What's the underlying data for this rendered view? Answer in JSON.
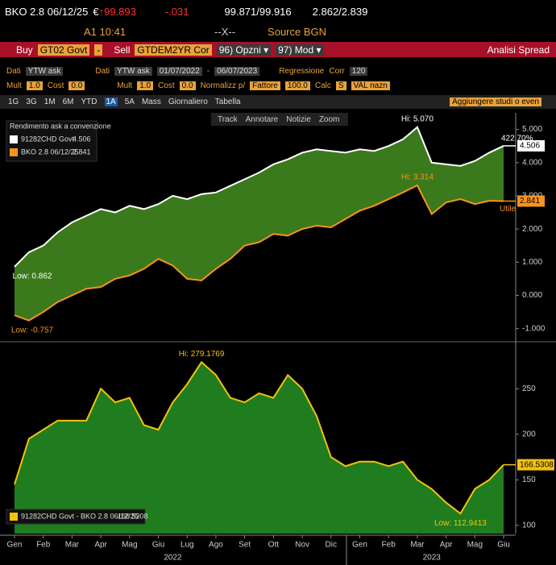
{
  "header": {
    "security": "BKO 2.8 06/12/25",
    "currency": "€",
    "price": "↑99.893",
    "change": "-.031",
    "bid_ask": "99.871/99.916",
    "yields": "2.862/2.839",
    "time": "A1 10:41",
    "marker": "--X--",
    "source": "Source BGN"
  },
  "toolbar": {
    "buy": "Buy",
    "buy_ticker": "GT02 Govt",
    "dash": "-",
    "sell": "Sell",
    "sell_ticker": "GTDEM2YR Cor",
    "options": "96) Opzni ▾",
    "mod": "97) Mod ▾",
    "title": "Analisi Spread"
  },
  "settings_row1": [
    "Dati",
    "YTW ask",
    "Dati",
    "YTW ask",
    "01/07/2022",
    "-",
    "06/07/2023",
    "Regressione",
    "Corr",
    "120"
  ],
  "settings_row2": [
    "Mult",
    "1.0",
    "Cost",
    "0.0",
    "Mult",
    "1.0",
    "Cost",
    "0.0",
    "Normalizz p/",
    "Fattore",
    "100.0",
    "Calc",
    "S",
    "VAL nazn"
  ],
  "periods": [
    "1G",
    "3G",
    "1M",
    "6M",
    "YTD",
    "1A",
    "5A",
    "Mass",
    "Giornaliero",
    "Tabella"
  ],
  "studies": "Aggiungere studi o even",
  "chart_tools": [
    "Track",
    "Annotare",
    "Notizie",
    "Zoom"
  ],
  "chart_data": [
    {
      "type": "line",
      "legend_title": "Rendimento ask a convenzione",
      "categories": [
        "Gen",
        null,
        "Feb",
        null,
        "Mar",
        null,
        "Apr",
        null,
        "Mag",
        null,
        "Giu",
        null,
        "Lug",
        null,
        "Ago",
        null,
        "Set",
        null,
        "Ott",
        null,
        "Nov",
        null,
        "Dic",
        null,
        "Gen",
        null,
        "Feb",
        null,
        "Mar",
        null,
        "Apr",
        null,
        "Mag",
        null,
        "Giu"
      ],
      "ylim": [
        -1.3,
        5.5
      ],
      "yticks": [
        {
          "value": -1,
          "label": "-1.000"
        },
        {
          "value": 0,
          "label": "0.000"
        },
        {
          "value": 1,
          "label": "1.000"
        },
        {
          "value": 2,
          "label": "2.000"
        },
        {
          "value": 3,
          "label": "3.000"
        },
        {
          "value": 4,
          "label": "4.000"
        },
        {
          "value": 5,
          "label": "5.000"
        }
      ],
      "fill_color": "#3b7a1c",
      "annotations": [
        "422.70%",
        "Utile"
      ],
      "series": [
        {
          "name": "91282CHD Govt",
          "color": "#ffffff",
          "hi_label": "Hi: 5.070",
          "low_label": "Low: 0.862",
          "values": [
            0.862,
            1.3,
            1.5,
            1.9,
            2.2,
            2.4,
            2.6,
            2.5,
            2.7,
            2.6,
            2.75,
            3.0,
            2.9,
            3.05,
            3.1,
            3.3,
            3.5,
            3.7,
            3.95,
            4.1,
            4.3,
            4.4,
            4.35,
            4.3,
            4.4,
            4.35,
            4.5,
            4.7,
            5.07,
            4.0,
            3.95,
            3.9,
            4.05,
            4.3,
            4.506
          ]
        },
        {
          "name": "BKO 2.8 06/12/25",
          "color": "#f7941d",
          "hi_label": "Hi: 3.314",
          "low_label": "Low: -0.757",
          "values": [
            -0.6,
            -0.757,
            -0.5,
            -0.2,
            0.0,
            0.2,
            0.25,
            0.5,
            0.6,
            0.8,
            1.1,
            0.9,
            0.5,
            0.45,
            0.8,
            1.1,
            1.5,
            1.6,
            1.85,
            1.8,
            2.0,
            2.1,
            2.05,
            2.3,
            2.55,
            2.7,
            2.9,
            3.1,
            3.314,
            2.45,
            2.8,
            2.9,
            2.75,
            2.85,
            2.841
          ]
        }
      ]
    },
    {
      "type": "area",
      "categories": [
        "Gen",
        null,
        "Feb",
        null,
        "Mar",
        null,
        "Apr",
        null,
        "Mag",
        null,
        "Giu",
        null,
        "Lug",
        null,
        "Ago",
        null,
        "Set",
        null,
        "Ott",
        null,
        "Nov",
        null,
        "Dic",
        null,
        "Gen",
        null,
        "Feb",
        null,
        "Mar",
        null,
        "Apr",
        null,
        "Mag",
        null,
        "Giu"
      ],
      "x_groups": [
        "2022",
        "2023"
      ],
      "ylim": [
        91,
        298
      ],
      "yticks": [
        100,
        150,
        200,
        250
      ],
      "fill_color": "#1f7d1f",
      "series": [
        {
          "name": "91282CHD Govt - BKO 2.8 06/12/25",
          "color": "#f4c20d",
          "hi_label": "Hi: 279.1769",
          "low_label": "Low: 112.9413",
          "values": [
            145,
            195,
            205,
            215,
            215,
            215,
            250,
            235,
            240,
            210,
            205,
            235,
            255,
            279.1769,
            265,
            240,
            235,
            245,
            240,
            265,
            250,
            220,
            175,
            165,
            170,
            170,
            165,
            170,
            150,
            140,
            125,
            112.9413,
            140,
            150,
            166.5308
          ]
        }
      ]
    }
  ]
}
